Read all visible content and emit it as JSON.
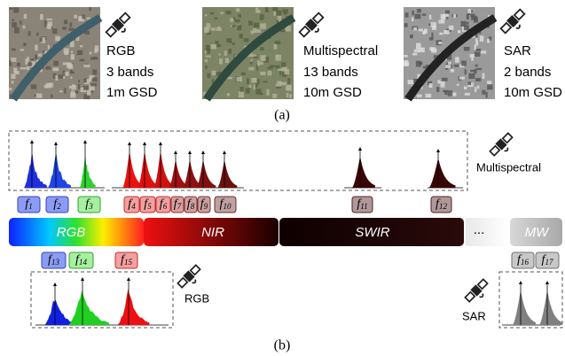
{
  "panel_a": {
    "caption": "(a)",
    "sensors": [
      {
        "name": "RGB",
        "bands": "3 bands",
        "gsd": "1m GSD"
      },
      {
        "name": "Multispectral",
        "bands": "13 bands",
        "gsd": "10m GSD"
      },
      {
        "name": "SAR",
        "bands": "2 bands",
        "gsd": "10m GSD"
      }
    ]
  },
  "panel_b": {
    "caption": "(b)",
    "spectrum": [
      "RGB",
      "NIR",
      "SWIR",
      "...",
      "MW"
    ],
    "sensor_labels": {
      "multispectral": "Multispectral",
      "rgb": "RGB",
      "sar": "SAR"
    },
    "filters": [
      {
        "symbol": "f",
        "index": "1"
      },
      {
        "symbol": "f",
        "index": "2"
      },
      {
        "symbol": "f",
        "index": "3"
      },
      {
        "symbol": "f",
        "index": "4"
      },
      {
        "symbol": "f",
        "index": "5"
      },
      {
        "symbol": "f",
        "index": "6"
      },
      {
        "symbol": "f",
        "index": "7"
      },
      {
        "symbol": "f",
        "index": "8"
      },
      {
        "symbol": "f",
        "index": "9"
      },
      {
        "symbol": "f",
        "index": "10"
      },
      {
        "symbol": "f",
        "index": "11"
      },
      {
        "symbol": "f",
        "index": "12"
      },
      {
        "symbol": "f",
        "index": "13"
      },
      {
        "symbol": "f",
        "index": "14"
      },
      {
        "symbol": "f",
        "index": "15"
      },
      {
        "symbol": "f",
        "index": "16"
      },
      {
        "symbol": "f",
        "index": "17"
      }
    ]
  }
}
